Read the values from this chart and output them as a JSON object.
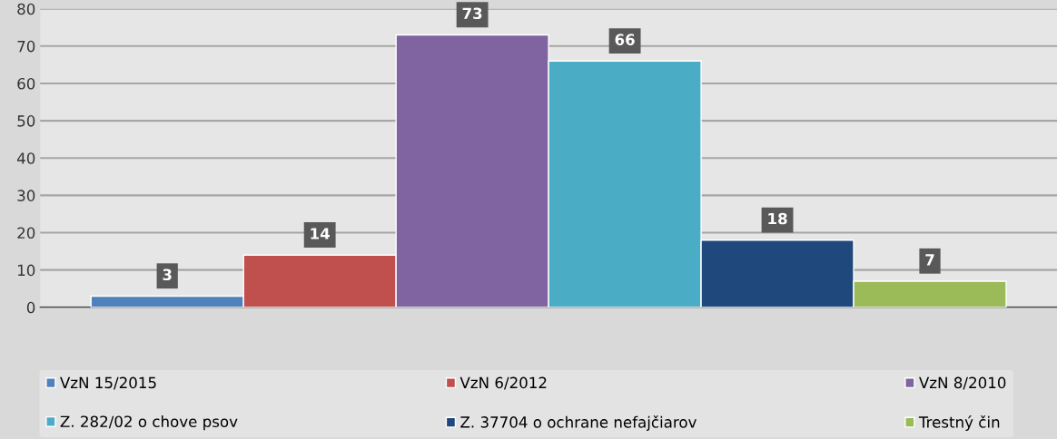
{
  "chart_data": {
    "type": "bar",
    "categories": [
      null
    ],
    "series": [
      {
        "name": "VzN 15/2015",
        "color": "#4f81bd",
        "values": [
          3
        ]
      },
      {
        "name": "VzN 6/2012",
        "color": "#c0504d",
        "values": [
          14
        ]
      },
      {
        "name": "VzN 8/2010",
        "color": "#8064a2",
        "values": [
          73
        ]
      },
      {
        "name": "Z. 282/02 o chove psov",
        "color": "#4bacc6",
        "values": [
          66
        ]
      },
      {
        "name": "Z. 37704 o ochrane nefajčiarov",
        "color": "#1f497d",
        "values": [
          18
        ]
      },
      {
        "name": "Trestný čin",
        "color": "#9bbb59",
        "values": [
          7
        ]
      }
    ],
    "ylim": [
      0,
      80
    ],
    "yticks": [
      0,
      10,
      20,
      30,
      40,
      50,
      60,
      70,
      80
    ],
    "grid": "y",
    "legend": "bottom",
    "data_labels": true
  }
}
